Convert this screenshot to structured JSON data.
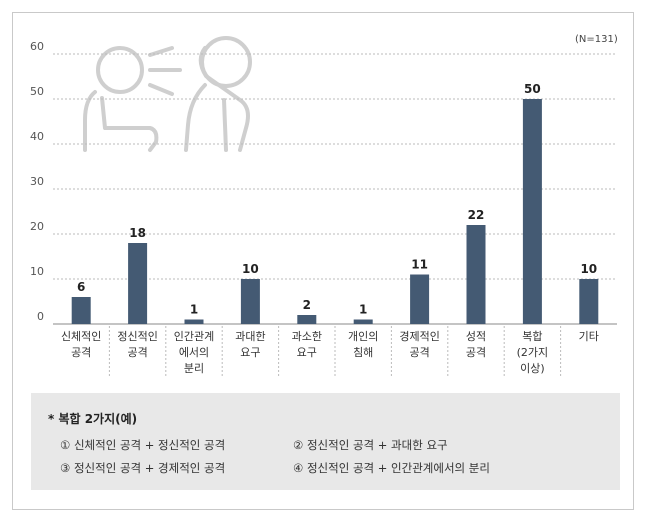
{
  "chart_data": {
    "type": "bar",
    "note": "(N=131)",
    "y_ticks": [
      "60",
      "50",
      "40",
      "30",
      "20",
      "10",
      "0"
    ],
    "ylim": [
      0,
      60
    ],
    "grid": true,
    "bar_color": "#445a73",
    "categories": [
      "신체적인 공격",
      "정신적인 공격",
      "인간관계 에서의 분리",
      "과대한 요구",
      "과소한 요구",
      "개인의 침해",
      "경제적인 공격",
      "성적 공격",
      "복합 (2가지 이상)",
      "기타"
    ],
    "values": [
      6,
      18,
      1,
      10,
      2,
      1,
      11,
      22,
      50,
      10
    ],
    "value_labels": [
      "6",
      "18",
      "1",
      "10",
      "2",
      "1",
      "11",
      "22",
      "50",
      "10"
    ]
  },
  "category_lines": [
    [
      "신체적인",
      "공격"
    ],
    [
      "정신적인",
      "공격"
    ],
    [
      "인간관계",
      "에서의",
      "분리"
    ],
    [
      "과대한",
      "요구"
    ],
    [
      "과소한",
      "요구"
    ],
    [
      "개인의",
      "침해"
    ],
    [
      "경제적인",
      "공격"
    ],
    [
      "성적",
      "공격"
    ],
    [
      "복합",
      "(2가지",
      "이상)"
    ],
    [
      "기타"
    ]
  ],
  "legend": {
    "title": "* 복합 2가지(예)",
    "items": [
      "① 신체적인 공격 + 정신적인 공격",
      "② 정신적인 공격 + 과대한 요구",
      "③ 정신적인 공격 + 경제적인 공격",
      "④ 정신적인 공격 + 인간관계에서의 분리"
    ]
  }
}
